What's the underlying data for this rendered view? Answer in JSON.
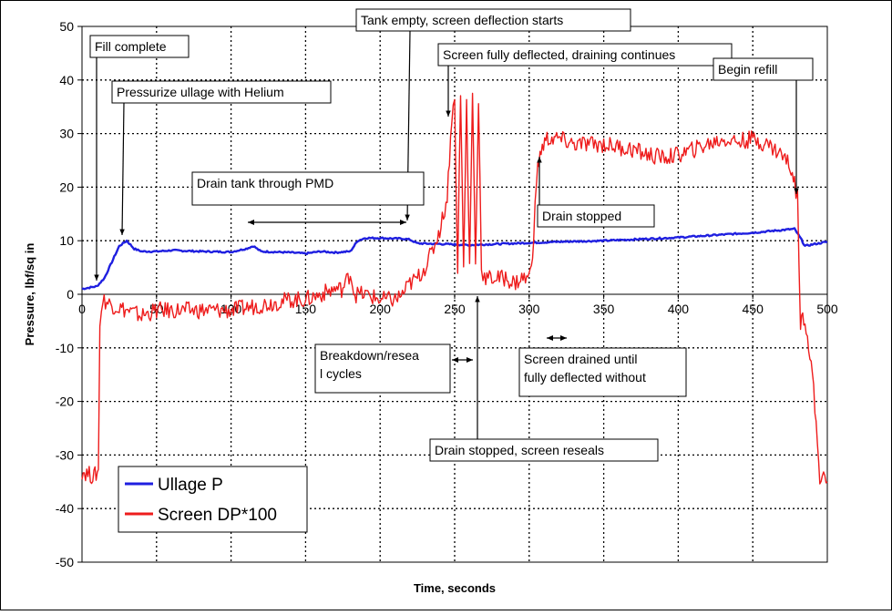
{
  "chart_data": {
    "type": "line",
    "title": "",
    "xlabel": "Time, seconds",
    "ylabel": "Pressure, lbf/sq in",
    "xlim": [
      0,
      500
    ],
    "ylim": [
      -50,
      50
    ],
    "x_ticks": [
      "0",
      "50",
      "100",
      "150",
      "200",
      "250",
      "300",
      "350",
      "400",
      "450",
      "500"
    ],
    "y_ticks": [
      "50",
      "40",
      "30",
      "20",
      "10",
      "0",
      "-10",
      "-20",
      "-30",
      "-40",
      "-50"
    ],
    "grid": true,
    "legend_position": "bottom-left",
    "series": [
      {
        "name": "Ullage P",
        "color": "#1f1fe0",
        "x": [
          0,
          10,
          15,
          20,
          25,
          30,
          35,
          40,
          50,
          60,
          80,
          100,
          110,
          115,
          120,
          140,
          150,
          160,
          170,
          180,
          185,
          190,
          200,
          210,
          215,
          220,
          225,
          240,
          260,
          280,
          300,
          320,
          350,
          400,
          450,
          478,
          482,
          485,
          490,
          500
        ],
        "y": [
          1,
          1.5,
          3,
          6,
          9,
          10,
          8.5,
          8,
          8,
          8.2,
          8,
          7.9,
          8.5,
          9,
          8,
          7.8,
          7.6,
          8,
          7.8,
          8,
          10,
          10.5,
          10.5,
          10.4,
          10.4,
          10.2,
          9.5,
          9.4,
          9.2,
          9.4,
          9.6,
          9.8,
          10,
          10.6,
          11.5,
          12.2,
          10.5,
          9,
          9.3,
          9.8
        ]
      },
      {
        "name": "Screen DP*100",
        "color": "#ee1c1c",
        "x": [
          0,
          8,
          11,
          12,
          14,
          20,
          30,
          40,
          50,
          60,
          80,
          100,
          120,
          140,
          150,
          160,
          170,
          175,
          180,
          183,
          190,
          200,
          210,
          215,
          220,
          225,
          230,
          235,
          240,
          245,
          248,
          250,
          252,
          254,
          256,
          258,
          260,
          262,
          264,
          266,
          268,
          270,
          275,
          280,
          285,
          290,
          295,
          300,
          303,
          305,
          308,
          312,
          320,
          330,
          340,
          350,
          360,
          370,
          380,
          390,
          400,
          410,
          420,
          430,
          440,
          450,
          460,
          470,
          475,
          478,
          480,
          482,
          485,
          490,
          495,
          500
        ],
        "y": [
          -33,
          -34,
          -33,
          -5,
          -1,
          -2,
          -3,
          -4,
          -3,
          -3,
          -3,
          -3,
          -2,
          -1,
          -1,
          0,
          1,
          1,
          4,
          0,
          0,
          -1,
          -1,
          0,
          2,
          3,
          5,
          8,
          12,
          18,
          33,
          36,
          5,
          37,
          5,
          36,
          5,
          38,
          5,
          37,
          5,
          3,
          3,
          3,
          3,
          2,
          3,
          3,
          10,
          22,
          27,
          29,
          29,
          28,
          28,
          28,
          27.5,
          27,
          26,
          25.5,
          26,
          27,
          28,
          29,
          28.5,
          29,
          28,
          26,
          24,
          21,
          18,
          -5,
          -4,
          -15,
          -34,
          -35
        ]
      }
    ],
    "annotations": [
      {
        "text": "Fill complete",
        "lines": [
          "Fill complete"
        ]
      },
      {
        "text": "Pressurize ullage with Helium",
        "lines": [
          "Pressurize ullage with Helium"
        ]
      },
      {
        "text": "Tank empty, screen deflection starts",
        "lines": [
          "Tank empty, screen deflection starts"
        ]
      },
      {
        "text": "Screen fully deflected, draining continues",
        "lines": [
          "Screen fully deflected, draining continues"
        ]
      },
      {
        "text": "Begin refill",
        "lines": [
          "Begin refill"
        ]
      },
      {
        "text": "Drain tank through PMD",
        "lines": [
          "Drain tank through PMD"
        ]
      },
      {
        "text": "Drain stopped",
        "lines": [
          "Drain stopped"
        ]
      },
      {
        "text": "Breakdown/reseal cycles",
        "lines": [
          "Breakdown/resea",
          "l cycles"
        ]
      },
      {
        "text": "Screen drained until fully deflected without",
        "lines": [
          "Screen drained until",
          "fully deflected without"
        ]
      },
      {
        "text": "Drain stopped, screen reseals",
        "lines": [
          "Drain stopped, screen reseals"
        ]
      }
    ]
  }
}
